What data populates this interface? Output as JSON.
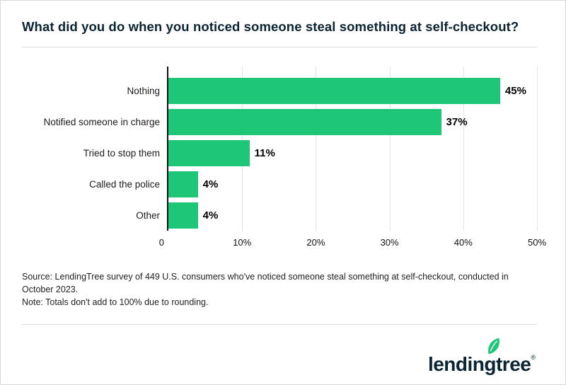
{
  "page": {
    "title": "What did you do when you noticed someone steal something at self-checkout?",
    "source": "Source: LendingTree survey of 449 U.S. consumers who've noticed someone steal something at self-checkout, conducted in October 2023.",
    "note": "Note: Totals don't add to 100% due to rounding."
  },
  "chart_data": {
    "type": "bar",
    "orientation": "horizontal",
    "title": "What did you do when you noticed someone steal something at self-checkout?",
    "categories": [
      "Nothing",
      "Notified someone in charge",
      "Tried to stop them",
      "Called the police",
      "Other"
    ],
    "values": [
      45,
      37,
      11,
      4,
      4
    ],
    "value_labels": [
      "45%",
      "37%",
      "11%",
      "4%",
      "4%"
    ],
    "xlim": [
      0,
      50
    ],
    "x_ticks": [
      0,
      10,
      20,
      30,
      40,
      50
    ],
    "x_tick_labels": [
      "0",
      "10%",
      "20%",
      "30%",
      "40%",
      "50%"
    ],
    "bar_color": "#1ec677",
    "grid": "vertical",
    "legend": "none"
  },
  "logo": {
    "text": "lendingtree",
    "trademark": "®",
    "leaf_color": "#1ec677",
    "text_color": "#0b2433"
  }
}
